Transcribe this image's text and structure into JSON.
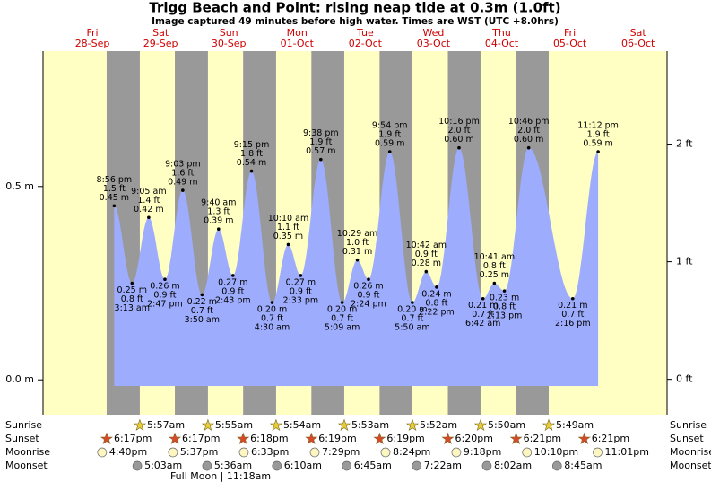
{
  "chart_data": {
    "type": "tide",
    "title": "Trigg Beach and Point: rising  neap tide at 0.3m (1.0ft)",
    "subtitle": "Image captured 49 minutes before high water. Times are WST (UTC +8.0hrs)",
    "days": [
      {
        "weekday": "Fri",
        "date": "28-Sep"
      },
      {
        "weekday": "Sat",
        "date": "29-Sep"
      },
      {
        "weekday": "Sun",
        "date": "30-Sep"
      },
      {
        "weekday": "Mon",
        "date": "01-Oct"
      },
      {
        "weekday": "Tue",
        "date": "02-Oct"
      },
      {
        "weekday": "Wed",
        "date": "03-Oct"
      },
      {
        "weekday": "Thu",
        "date": "04-Oct"
      },
      {
        "weekday": "Fri",
        "date": "05-Oct"
      },
      {
        "weekday": "Sat",
        "date": "06-Oct"
      }
    ],
    "extremes": [
      [
        {
          "kind": "high",
          "time": "8:56 pm",
          "ft_label": "1.5 ft",
          "m": 0.45,
          "m_label": "0.45 m"
        }
      ],
      [
        {
          "kind": "low",
          "time": "3:13 am",
          "ft_label": "0.8 ft",
          "m": 0.25,
          "m_label": "0.25 m"
        },
        {
          "kind": "high",
          "time": "9:05 am",
          "ft_label": "1.4 ft",
          "m": 0.42,
          "m_label": "0.42 m"
        },
        {
          "kind": "low",
          "time": "2:47 pm",
          "ft_label": "0.9 ft",
          "m": 0.26,
          "m_label": "0.26 m"
        },
        {
          "kind": "high",
          "time": "9:03 pm",
          "ft_label": "1.6 ft",
          "m": 0.49,
          "m_label": "0.49 m"
        }
      ],
      [
        {
          "kind": "low",
          "time": "3:50 am",
          "ft_label": "0.7 ft",
          "m": 0.22,
          "m_label": "0.22 m"
        },
        {
          "kind": "high",
          "time": "9:40 am",
          "ft_label": "1.3 ft",
          "m": 0.39,
          "m_label": "0.39 m"
        },
        {
          "kind": "low",
          "time": "2:43 pm",
          "ft_label": "0.9 ft",
          "m": 0.27,
          "m_label": "0.27 m"
        },
        {
          "kind": "high",
          "time": "9:15 pm",
          "ft_label": "1.8 ft",
          "m": 0.54,
          "m_label": "0.54 m"
        }
      ],
      [
        {
          "kind": "low",
          "time": "4:30 am",
          "ft_label": "0.7 ft",
          "m": 0.2,
          "m_label": "0.20 m"
        },
        {
          "kind": "high",
          "time": "10:10 am",
          "ft_label": "1.1 ft",
          "m": 0.35,
          "m_label": "0.35 m"
        },
        {
          "kind": "low",
          "time": "2:33 pm",
          "ft_label": "0.9 ft",
          "m": 0.27,
          "m_label": "0.27 m"
        },
        {
          "kind": "high",
          "time": "9:38 pm",
          "ft_label": "1.9 ft",
          "m": 0.57,
          "m_label": "0.57 m"
        }
      ],
      [
        {
          "kind": "low",
          "time": "5:09 am",
          "ft_label": "0.7 ft",
          "m": 0.2,
          "m_label": "0.20 m"
        },
        {
          "kind": "high",
          "time": "10:29 am",
          "ft_label": "1.0 ft",
          "m": 0.31,
          "m_label": "0.31 m"
        },
        {
          "kind": "low",
          "time": "2:24 pm",
          "ft_label": "0.9 ft",
          "m": 0.26,
          "m_label": "0.26 m"
        },
        {
          "kind": "high",
          "time": "9:54 pm",
          "ft_label": "1.9 ft",
          "m": 0.59,
          "m_label": "0.59 m"
        }
      ],
      [
        {
          "kind": "low",
          "time": "5:50 am",
          "ft_label": "0.7 ft",
          "m": 0.2,
          "m_label": "0.20 m"
        },
        {
          "kind": "high",
          "time": "10:42 am",
          "ft_label": "0.9 ft",
          "m": 0.28,
          "m_label": "0.28 m"
        },
        {
          "kind": "low",
          "time": "2:22 pm",
          "ft_label": "0.8 ft",
          "m": 0.24,
          "m_label": "0.24 m"
        },
        {
          "kind": "high",
          "time": "10:16 pm",
          "ft_label": "2.0 ft",
          "m": 0.6,
          "m_label": "0.60 m"
        }
      ],
      [
        {
          "kind": "low",
          "time": "6:42 am",
          "ft_label": "0.7 ft",
          "m": 0.21,
          "m_label": "0.21 m"
        },
        {
          "kind": "high",
          "time": "10:41 am",
          "ft_label": "0.8 ft",
          "m": 0.25,
          "m_label": "0.25 m"
        },
        {
          "kind": "low",
          "time": "2:13 pm",
          "ft_label": "0.8 ft",
          "m": 0.23,
          "m_label": "0.23 m"
        },
        {
          "kind": "high",
          "time": "10:46 pm",
          "ft_label": "2.0 ft",
          "m": 0.6,
          "m_label": "0.60 m"
        }
      ],
      [
        {
          "kind": "low",
          "time": "2:16 pm",
          "ft_label": "0.7 ft",
          "m": 0.21,
          "m_label": "0.21 m"
        },
        {
          "kind": "high",
          "time": "11:12 pm",
          "ft_label": "1.9 ft",
          "m": 0.59,
          "m_label": "0.59 m"
        }
      ],
      []
    ],
    "row_labels": [
      "Sunrise",
      "Sunset",
      "Moonrise",
      "Moonset"
    ],
    "sunrise": [
      null,
      "5:57am",
      "5:55am",
      "5:54am",
      "5:53am",
      "5:52am",
      "5:50am",
      "5:49am",
      null
    ],
    "sunset": [
      "6:17pm",
      "6:17pm",
      "6:18pm",
      "6:19pm",
      "6:19pm",
      "6:20pm",
      "6:21pm",
      "6:21pm",
      null
    ],
    "moonrise": [
      "4:40pm",
      "5:37pm",
      "6:33pm",
      "7:29pm",
      "8:24pm",
      "9:18pm",
      "10:10pm",
      "11:01pm",
      null
    ],
    "moonset": [
      null,
      "5:03am",
      "5:36am",
      "6:10am",
      "6:45am",
      "7:22am",
      "8:02am",
      "8:45am",
      null
    ],
    "moon_phase": "Full Moon | 11:18am",
    "ylim": [
      -0.09,
      0.85
    ],
    "yticks": [
      {
        "value": 0,
        "label": "0.0 m"
      },
      {
        "value": 0.5,
        "label": "0.5 m"
      }
    ],
    "y2lim": [
      -0.3,
      2.79
    ],
    "y2ticks": [
      {
        "value": 0,
        "label": "0 ft"
      },
      {
        "value": 1,
        "label": "1 ft"
      },
      {
        "value": 2,
        "label": "2 ft"
      }
    ],
    "colors": {
      "tide": "#9eacfd",
      "day": "#ffffc4",
      "night": "#999999"
    }
  }
}
